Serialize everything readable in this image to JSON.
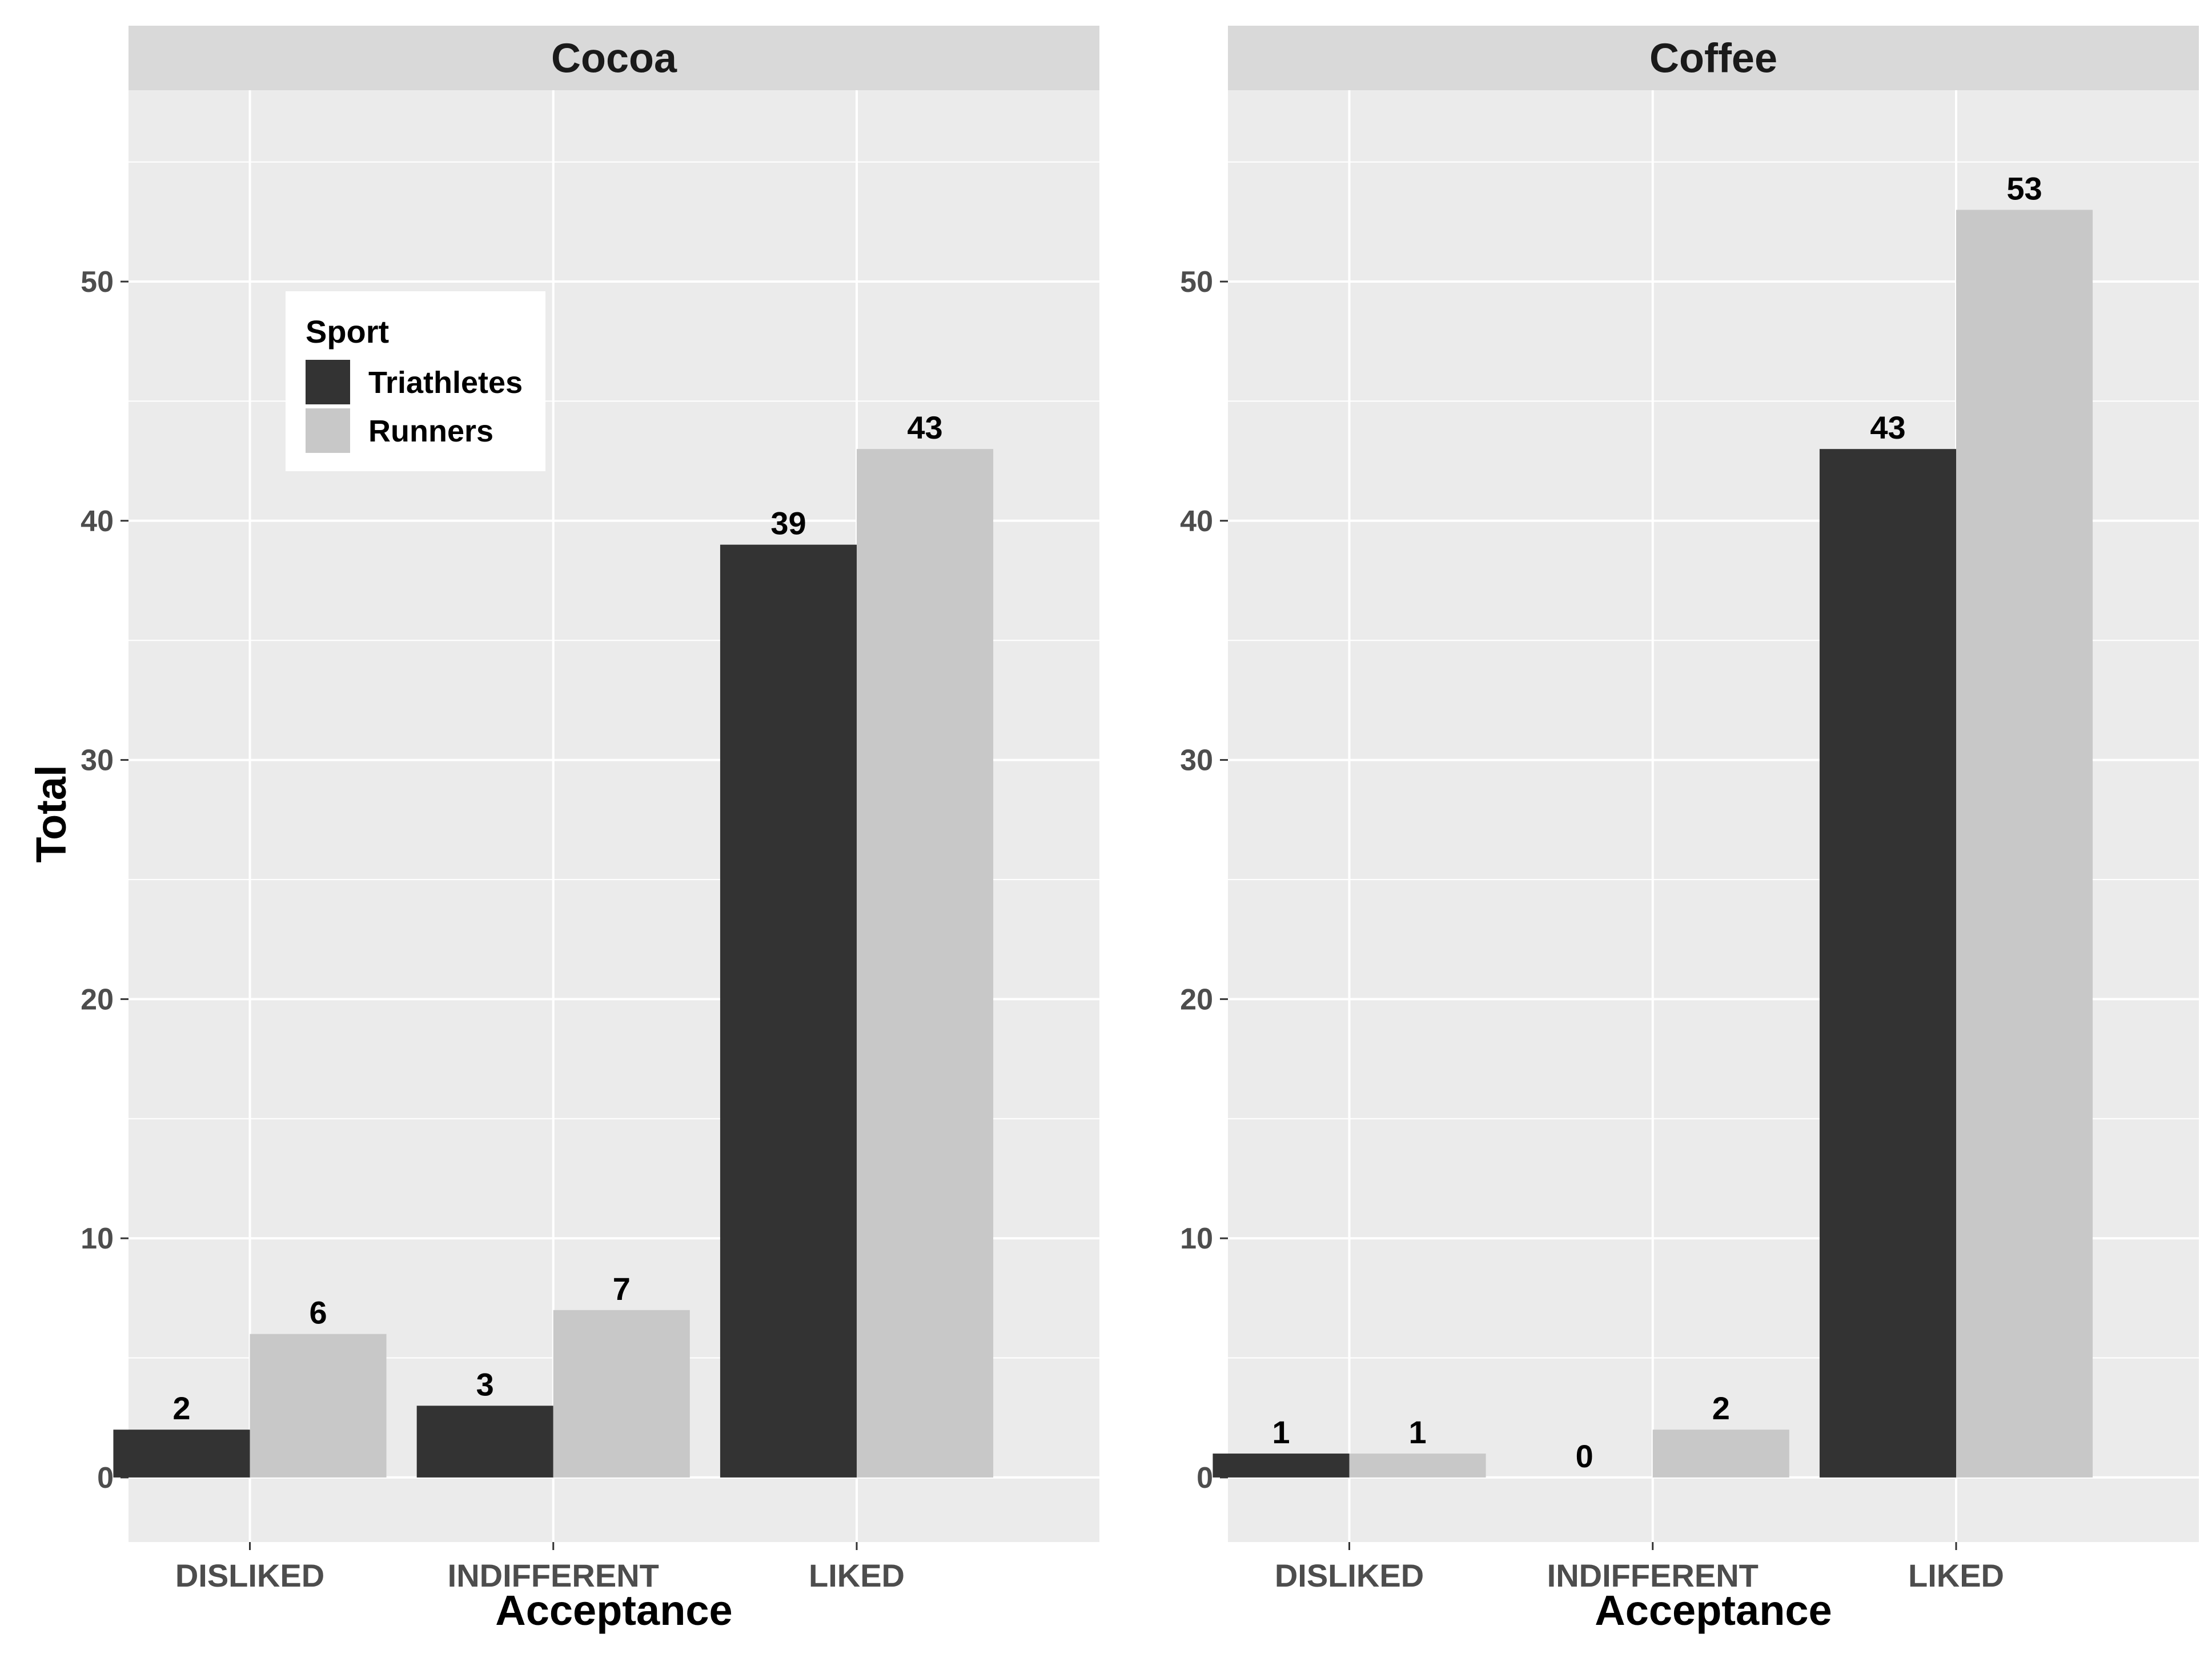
{
  "chart_data": {
    "type": "bar",
    "layout": "facet",
    "facet_variable": "Drink",
    "xlabel": "Acceptance",
    "ylabel": "Total",
    "categories": [
      "DISLIKED",
      "INDIFFERENT",
      "LIKED"
    ],
    "ylim": [
      -2.7,
      58
    ],
    "yticks": [
      0,
      10,
      20,
      30,
      40,
      50
    ],
    "grid": true,
    "legend": {
      "title": "Sport",
      "position": "top-left inside first panel",
      "entries": [
        "Triathletes",
        "Runners"
      ]
    },
    "colors": {
      "Triathletes": "#333333",
      "Runners": "#c8c8c8",
      "panel_background": "#ebebeb",
      "strip_background": "#d9d9d9",
      "gridline": "#ffffff"
    },
    "panels": [
      {
        "title": "Cocoa",
        "series": [
          {
            "name": "Triathletes",
            "values": [
              2,
              3,
              39
            ]
          },
          {
            "name": "Runners",
            "values": [
              6,
              7,
              43
            ]
          }
        ]
      },
      {
        "title": "Coffee",
        "series": [
          {
            "name": "Triathletes",
            "values": [
              1,
              0,
              43
            ]
          },
          {
            "name": "Runners",
            "values": [
              1,
              2,
              53
            ]
          }
        ]
      }
    ]
  }
}
